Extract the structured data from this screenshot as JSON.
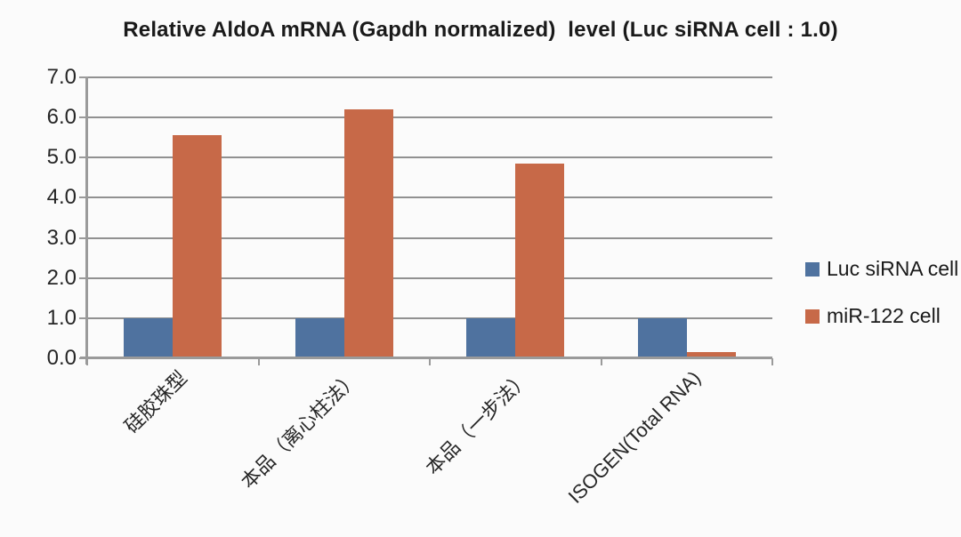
{
  "chart_data": {
    "type": "bar",
    "title": "Relative AldoA mRNA (Gapdh normalized)  level (Luc siRNA cell : 1.0)",
    "categories": [
      "硅胶珠型",
      "本品（离心柱法）",
      "本品（一步法）",
      "ISOGEN(Total RNA)"
    ],
    "series": [
      {
        "name": "Luc siRNA cell",
        "color": "#4F729F",
        "values": [
          1.0,
          1.0,
          1.0,
          1.0
        ]
      },
      {
        "name": "miR-122 cell",
        "color": "#C76948",
        "values": [
          5.55,
          6.2,
          4.85,
          0.15
        ]
      }
    ],
    "ylim": [
      0,
      7
    ],
    "y_tick_step": 1.0,
    "y_tick_labels": [
      "0.0",
      "1.0",
      "2.0",
      "3.0",
      "4.0",
      "5.0",
      "6.0",
      "7.0"
    ],
    "xlabel": "",
    "ylabel": "",
    "grid": "horizontal",
    "legend_position": "right",
    "category_label_rotation_deg": 45,
    "colors": {
      "gridline": "#919191",
      "axis": "#9A9A9A",
      "tick_text": "#262626",
      "title_text": "#1A1A1A",
      "background": "#FBFBFB"
    }
  }
}
